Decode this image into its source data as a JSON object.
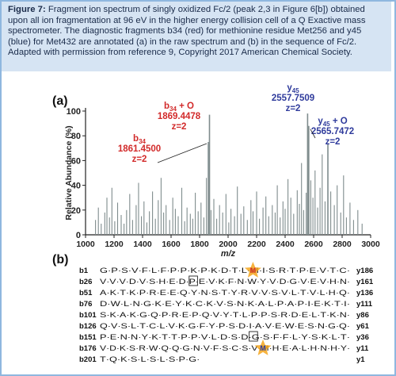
{
  "caption": {
    "label": "Figure 7:",
    "text": "Fragment ion spectrum of singly oxidized Fc/2 (peak 2,3 in Figure 6[b]) obtained upon all ion fragmentation at 96 eV in the higher energy collision cell of a Q Exactive mass spectrometer. The diagnostic fragments b34 (red) for methionine residue Met256 and y45 (blue) for Met432 are annotated (a) in the raw spectrum and (b) in the sequence of Fc/2. Adapted with permission from reference 9, Copyright 2017 American Chemical Society."
  },
  "colors": {
    "red": "#d22a2a",
    "blue": "#2f3b9c",
    "bar": "#7f8c8d",
    "star": "#f4a61d"
  },
  "chart_data": {
    "type": "bar",
    "panel_label": "(a)",
    "xlabel": "m/z",
    "ylabel": "Relative Abundance (%)",
    "xlim": [
      1000,
      3000
    ],
    "ylim": [
      0,
      100
    ],
    "xticks": [
      1000,
      1200,
      1400,
      1600,
      1800,
      2000,
      2200,
      2400,
      2600,
      2800,
      3000
    ],
    "yticks": [
      0,
      20,
      40,
      60,
      80,
      100
    ],
    "peaks": [
      [
        1070,
        12
      ],
      [
        1090,
        22
      ],
      [
        1110,
        9
      ],
      [
        1135,
        18
      ],
      [
        1150,
        30
      ],
      [
        1168,
        14
      ],
      [
        1185,
        38
      ],
      [
        1205,
        11
      ],
      [
        1225,
        26
      ],
      [
        1250,
        16
      ],
      [
        1270,
        9
      ],
      [
        1288,
        20
      ],
      [
        1310,
        33
      ],
      [
        1330,
        12
      ],
      [
        1355,
        24
      ],
      [
        1372,
        42
      ],
      [
        1392,
        15
      ],
      [
        1410,
        27
      ],
      [
        1430,
        10
      ],
      [
        1448,
        19
      ],
      [
        1470,
        35
      ],
      [
        1490,
        13
      ],
      [
        1510,
        28
      ],
      [
        1530,
        46
      ],
      [
        1548,
        18
      ],
      [
        1565,
        24
      ],
      [
        1590,
        12
      ],
      [
        1612,
        30
      ],
      [
        1630,
        21
      ],
      [
        1650,
        15
      ],
      [
        1675,
        38
      ],
      [
        1695,
        11
      ],
      [
        1712,
        22
      ],
      [
        1735,
        17
      ],
      [
        1752,
        13
      ],
      [
        1770,
        34
      ],
      [
        1790,
        19
      ],
      [
        1810,
        26
      ],
      [
        1830,
        14
      ],
      [
        1848,
        46
      ],
      [
        1861.45,
        75
      ],
      [
        1869.45,
        97
      ],
      [
        1880,
        20
      ],
      [
        1900,
        29
      ],
      [
        1920,
        13
      ],
      [
        1940,
        24
      ],
      [
        1962,
        18
      ],
      [
        1985,
        33
      ],
      [
        2005,
        10
      ],
      [
        2020,
        21
      ],
      [
        2045,
        15
      ],
      [
        2065,
        39
      ],
      [
        2090,
        17
      ],
      [
        2110,
        23
      ],
      [
        2135,
        12
      ],
      [
        2160,
        28
      ],
      [
        2175,
        19
      ],
      [
        2200,
        35
      ],
      [
        2220,
        13
      ],
      [
        2245,
        22
      ],
      [
        2265,
        31
      ],
      [
        2285,
        15
      ],
      [
        2310,
        24
      ],
      [
        2330,
        18
      ],
      [
        2345,
        40
      ],
      [
        2365,
        14
      ],
      [
        2385,
        27
      ],
      [
        2400,
        21
      ],
      [
        2420,
        45
      ],
      [
        2440,
        30
      ],
      [
        2460,
        17
      ],
      [
        2485,
        36
      ],
      [
        2500,
        25
      ],
      [
        2515,
        58
      ],
      [
        2530,
        20
      ],
      [
        2548,
        34
      ],
      [
        2557.75,
        98
      ],
      [
        2565.75,
        88
      ],
      [
        2580,
        44
      ],
      [
        2595,
        30
      ],
      [
        2610,
        52
      ],
      [
        2628,
        22
      ],
      [
        2645,
        38
      ],
      [
        2660,
        65
      ],
      [
        2680,
        27
      ],
      [
        2700,
        74
      ],
      [
        2720,
        35
      ],
      [
        2745,
        24
      ],
      [
        2765,
        40
      ],
      [
        2790,
        18
      ],
      [
        2810,
        48
      ],
      [
        2830,
        14
      ],
      [
        2855,
        26
      ],
      [
        2880,
        12
      ],
      [
        2910,
        20
      ],
      [
        2940,
        9
      ]
    ],
    "annotations": [
      {
        "label": "b34 + O",
        "mz": "1869.4478",
        "z": "z=2",
        "series": "b"
      },
      {
        "label": "b34",
        "mz": "1861.4500",
        "z": "z=2",
        "series": "b"
      },
      {
        "label": "y45",
        "mz": "2557.7509",
        "z": "z=2",
        "series": "y"
      },
      {
        "label": "y45 + O",
        "mz": "2565.7472",
        "z": "z=2",
        "series": "y"
      }
    ]
  },
  "sequence": {
    "panel_label": "(b)",
    "rows": [
      {
        "b": "b1",
        "seq": "G·P·S·V·F·L·F·P·P·K·P·K·D·T·L·M·I·S·R·T·P·E·V·T·C·",
        "y": "y186"
      },
      {
        "b": "b26",
        "seq": "V·V·V·D·V·S·H·E·D·P·E·V·K·F·N·W·Y·V·D·G·V·E·V·H·N·",
        "y": "y161"
      },
      {
        "b": "b51",
        "seq": "A·K·T·K·P·R·E·E·Q·Y·N·S·T·Y·R·V·V·S·V·L·T·V·L·H·Q·",
        "y": "y136"
      },
      {
        "b": "b76",
        "seq": "D·W·L·N·G·K·E·Y·K·C·K·V·S·N·K·A·L·P·A·P·I·E·K·T·I·",
        "y": "y111"
      },
      {
        "b": "b101",
        "seq": "S·K·A·K·G·Q·P·R·E·P·Q·V·Y·T·L·P·P·S·R·D·E·L·T·K·N·",
        "y": "y86"
      },
      {
        "b": "b126",
        "seq": "Q·V·S·L·T·C·L·V·K·G·F·Y·P·S·D·I·A·V·E·W·E·S·N·G·Q·",
        "y": "y61"
      },
      {
        "b": "b151",
        "seq": "P·E·N·N·Y·K·T·T·P·P·V·L·D·S·D·G·S·F·F·L·Y·S·K·L·T·",
        "y": "y36"
      },
      {
        "b": "b176",
        "seq": "V·D·K·S·R·W·Q·Q·G·N·V·F·S·C·S·V·M·H·E·A·L·H·N·H·Y·",
        "y": "y11"
      },
      {
        "b": "b201",
        "seq": "T·Q·K·S·L·S·L·S·P·G·",
        "y": "y1"
      }
    ]
  }
}
